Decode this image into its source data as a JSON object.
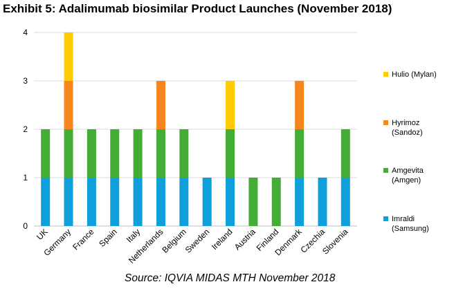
{
  "title": "Exhibit 5: Adalimumab biosimilar Product Launches (November 2018)",
  "source": "Source: IQVIA MIDAS MTH November 2018",
  "chart_data": {
    "type": "bar",
    "stacked": true,
    "categories": [
      "UK",
      "Germany",
      "France",
      "Spain",
      "Italy",
      "Netherlands",
      "Belgium",
      "Sweden",
      "Ireland",
      "Austria",
      "Finland",
      "Denmark",
      "Czechia",
      "Slovenia"
    ],
    "series": [
      {
        "name": "Imraldi (Samsung)",
        "color": "#0fa0dc",
        "values": [
          1,
          1,
          1,
          1,
          1,
          1,
          1,
          1,
          1,
          0,
          0,
          1,
          1,
          1
        ]
      },
      {
        "name": "Amgevita (Amgen)",
        "color": "#44ad35",
        "values": [
          1,
          1,
          1,
          1,
          1,
          1,
          1,
          0,
          1,
          1,
          1,
          1,
          0,
          1
        ]
      },
      {
        "name": "Hyrimoz (Sandoz)",
        "color": "#f7861f",
        "values": [
          0,
          1,
          0,
          0,
          0,
          1,
          0,
          0,
          0,
          0,
          0,
          1,
          0,
          0
        ]
      },
      {
        "name": "Hulio (Mylan)",
        "color": "#ffcc05",
        "values": [
          0,
          1,
          0,
          0,
          0,
          0,
          0,
          0,
          1,
          0,
          0,
          0,
          0,
          0
        ]
      }
    ],
    "legend": [
      {
        "line1": "Hulio (Mylan)",
        "line2": "",
        "color": "#ffcc05"
      },
      {
        "line1": "Hyrimoz",
        "line2": "(Sandoz)",
        "color": "#f7861f"
      },
      {
        "line1": "Amgevita",
        "line2": "(Amgen)",
        "color": "#44ad35"
      },
      {
        "line1": "Imraldi",
        "line2": "(Samsung)",
        "color": "#0fa0dc"
      }
    ],
    "ylim": [
      0,
      4
    ],
    "yticks": [
      0,
      1,
      2,
      3,
      4
    ],
    "grid": true,
    "legend_position": "right"
  }
}
